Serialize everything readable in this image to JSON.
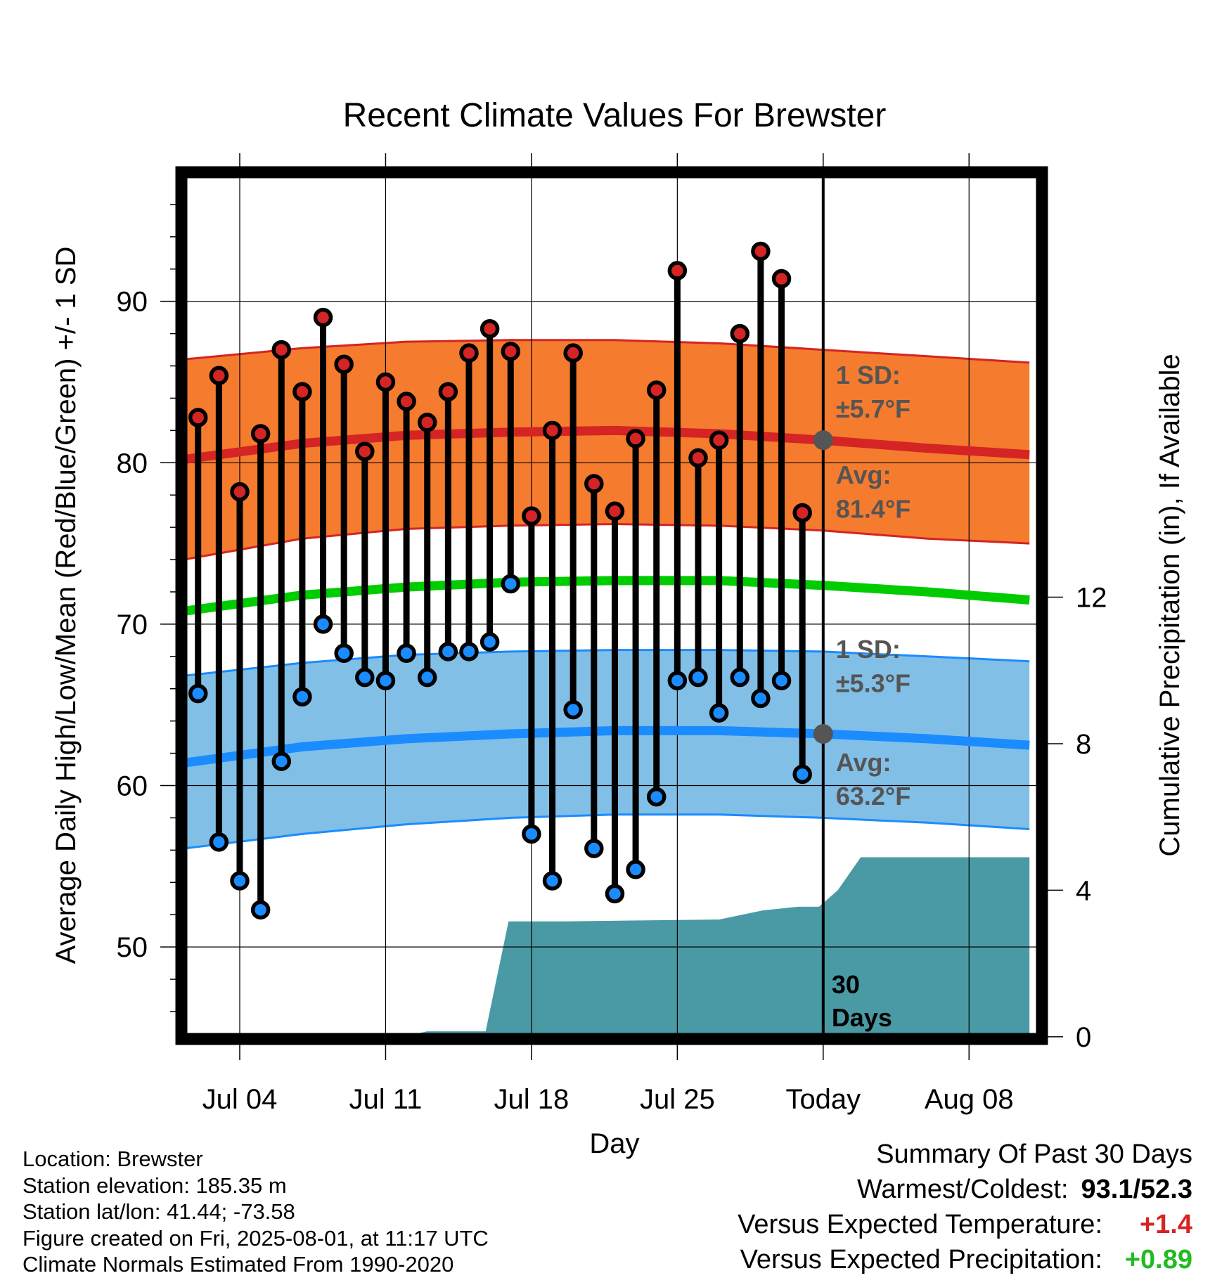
{
  "chart_data": {
    "type": "line",
    "title": "Recent Climate Values For Brewster",
    "xlabel": "Day",
    "ylabel": "Average Daily High/Low/Mean (Red/Blue/Green) +/- 1 SD",
    "y2label": "Cumulative Precipitation (in), If Available",
    "xlim": [
      -2.8,
      38.5
    ],
    "ylim": [
      44.3,
      98.0
    ],
    "y2lim": [
      -0.06,
      23.6
    ],
    "x_ticks": [
      {
        "x": 0,
        "label": "Jul 04"
      },
      {
        "x": 7,
        "label": "Jul 11"
      },
      {
        "x": 14,
        "label": "Jul 18"
      },
      {
        "x": 21,
        "label": "Jul 25"
      },
      {
        "x": 28,
        "label": "Today"
      },
      {
        "x": 35,
        "label": "Aug 08"
      }
    ],
    "y_ticks": [
      50,
      60,
      70,
      80,
      90
    ],
    "y2_ticks": [
      0,
      4,
      8,
      12
    ],
    "grid": true,
    "days_x": [
      -2,
      -1,
      0,
      1,
      2,
      3,
      4,
      5,
      6,
      7,
      8,
      9,
      10,
      11,
      12,
      13,
      14,
      15,
      16,
      17,
      18,
      19,
      20,
      21,
      22,
      23,
      24,
      25,
      26,
      27
    ],
    "daily_high": [
      82.8,
      85.4,
      78.2,
      81.8,
      87.0,
      84.4,
      89.0,
      86.1,
      80.7,
      85.0,
      83.8,
      82.5,
      84.4,
      86.8,
      88.3,
      86.9,
      76.7,
      82.0,
      86.8,
      78.7,
      77.0,
      81.5,
      84.5,
      91.9,
      80.3,
      81.4,
      88.0,
      93.1,
      91.4,
      76.9
    ],
    "daily_low": [
      65.7,
      56.5,
      54.1,
      52.3,
      61.5,
      65.5,
      70.0,
      68.2,
      66.7,
      66.5,
      68.2,
      66.7,
      68.3,
      68.3,
      68.9,
      72.5,
      57.0,
      54.1,
      64.7,
      56.1,
      53.3,
      54.8,
      59.3,
      66.5,
      66.7,
      64.5,
      66.7,
      65.4,
      66.5,
      60.7
    ],
    "normals_x": [
      -2.7,
      3,
      8,
      13,
      18,
      23,
      28,
      33,
      37.9
    ],
    "normal_high": [
      80.2,
      81.2,
      81.7,
      81.9,
      82.0,
      81.8,
      81.4,
      80.9,
      80.5
    ],
    "normal_high_upper": [
      86.4,
      87.1,
      87.5,
      87.6,
      87.6,
      87.4,
      87.0,
      86.6,
      86.2
    ],
    "normal_high_lower": [
      74.0,
      75.3,
      75.9,
      76.1,
      76.2,
      76.1,
      75.8,
      75.3,
      75.0
    ],
    "normal_mean": [
      70.8,
      71.8,
      72.3,
      72.6,
      72.7,
      72.7,
      72.4,
      72.0,
      71.5
    ],
    "normal_low": [
      61.4,
      62.4,
      62.9,
      63.2,
      63.4,
      63.4,
      63.2,
      62.9,
      62.5
    ],
    "normal_low_upper": [
      66.8,
      67.6,
      68.1,
      68.3,
      68.4,
      68.4,
      68.3,
      68.0,
      67.7
    ],
    "normal_low_lower": [
      56.1,
      57.0,
      57.6,
      58.0,
      58.2,
      58.2,
      58.0,
      57.7,
      57.3
    ],
    "precip_x": [
      -2.7,
      2.8,
      4.4,
      8.6,
      9.0,
      11.8,
      12.9,
      14.2,
      15.6,
      23.0,
      25.1,
      26.8,
      27.8,
      28.7,
      29.8,
      33.0,
      37.9
    ],
    "precip_cumulative": [
      0.0,
      0.0,
      0.0,
      0.1,
      0.15,
      0.15,
      3.15,
      3.15,
      3.15,
      3.2,
      3.45,
      3.55,
      3.55,
      4.0,
      4.9,
      4.9,
      4.9
    ],
    "today_marker": {
      "label_num": "30",
      "label_word": "Days"
    },
    "annotations": {
      "high_sd_title": "1 SD:",
      "high_sd_value": "±5.7°F",
      "high_avg_title": "Avg:",
      "high_avg_value": "81.4°F",
      "low_sd_title": "1 SD:",
      "low_sd_value": "±5.3°F",
      "low_avg_title": "Avg:",
      "low_avg_value": "63.2°F",
      "high_avg_point": 81.4,
      "low_avg_point": 63.2
    },
    "colors": {
      "high_band": "#f57b2e",
      "high_line": "#d42424",
      "low_band": "#82bfe6",
      "low_line": "#1a8cff",
      "mean_line": "#00cc00",
      "precip": "#4a9aa5",
      "high_marker": "#d42424",
      "low_marker": "#1a8cff",
      "annotation": "#555555"
    }
  },
  "footer": {
    "location": "Location: Brewster",
    "elevation": "Station elevation: 185.35 m",
    "latlon": "Station lat/lon: 41.44; -73.58",
    "created": "Figure created on Fri, 2025-08-01, at 11:17 UTC",
    "normals": "Climate Normals Estimated From 1990-2020"
  },
  "summary": {
    "title": "Summary Of Past 30 Days",
    "warmest_coldest_label": "Warmest/Coldest:",
    "warmest_coldest_value": "93.1/52.3",
    "temp_label": "Versus Expected Temperature:",
    "temp_value": "+1.4",
    "temp_color": "#d42424",
    "precip_label": "Versus Expected Precipitation:",
    "precip_value": "+0.89",
    "precip_color": "#22bb22"
  }
}
